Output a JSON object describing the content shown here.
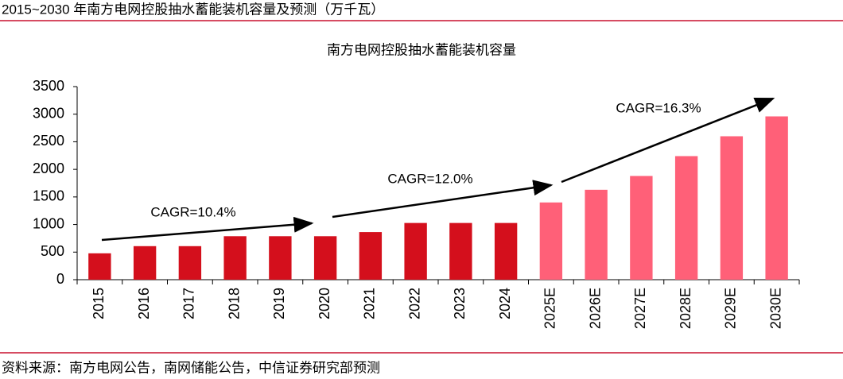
{
  "header": {
    "title": "2015~2030 年南方电网控股抽水蓄能装机容量及预测（万千瓦）"
  },
  "chart_data": {
    "type": "bar",
    "title": "南方电网控股抽水蓄能装机容量",
    "categories": [
      "2015",
      "2016",
      "2017",
      "2018",
      "2019",
      "2020",
      "2021",
      "2022",
      "2023",
      "2024",
      "2025E",
      "2026E",
      "2027E",
      "2028E",
      "2029E",
      "2030E"
    ],
    "values": [
      478,
      608,
      608,
      788,
      788,
      788,
      863,
      1028,
      1028,
      1028,
      1400,
      1630,
      1880,
      2240,
      2600,
      2960
    ],
    "colors": [
      "#d40f1c",
      "#d40f1c",
      "#d40f1c",
      "#d40f1c",
      "#d40f1c",
      "#d40f1c",
      "#d40f1c",
      "#d40f1c",
      "#d40f1c",
      "#d40f1c",
      "#ff6078",
      "#ff6078",
      "#ff6078",
      "#ff6078",
      "#ff6078",
      "#ff6078"
    ],
    "ylim": [
      0,
      3500
    ],
    "yticks": [
      0,
      500,
      1000,
      1500,
      2000,
      2500,
      3000,
      3500
    ],
    "annotations": [
      "CAGR=10.4%",
      "CAGR=12.0%",
      "CAGR=16.3%"
    ]
  },
  "footer": {
    "source": "资料来源：南方电网公告，南网储能公告，中信证券研究部预测"
  }
}
